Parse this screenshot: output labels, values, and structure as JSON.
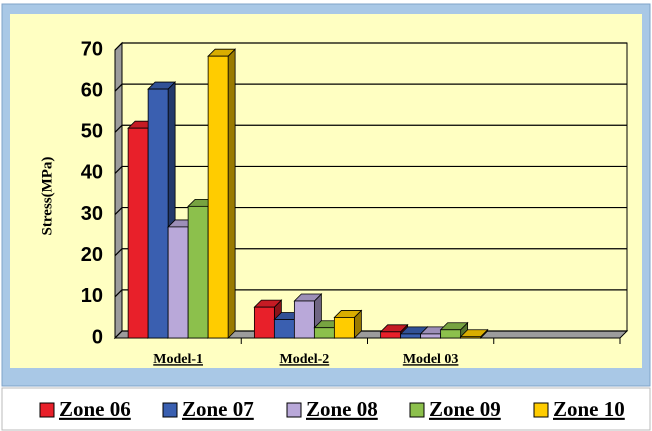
{
  "chart_data": {
    "type": "bar3d",
    "y_label": "Stress(MPa)",
    "categories": [
      "Model-1",
      "Model-2",
      "Model 03",
      null
    ],
    "series": [
      {
        "name": "Zone 06",
        "color": "#e8202a",
        "values": [
          51,
          7.5,
          1.5,
          null
        ]
      },
      {
        "name": "Zone 07",
        "color": "#3a5fb0",
        "values": [
          60.5,
          4.5,
          1,
          null
        ]
      },
      {
        "name": "Zone 08",
        "color": "#b9a8d9",
        "values": [
          27,
          9,
          1,
          null
        ]
      },
      {
        "name": "Zone 09",
        "color": "#8cc04c",
        "values": [
          32,
          2.5,
          2,
          null
        ]
      },
      {
        "name": "Zone 10",
        "color": "#ffcc00",
        "values": [
          68.5,
          5,
          0.3,
          null
        ]
      }
    ],
    "ylim": [
      0,
      70
    ],
    "yticks": [
      0,
      10,
      20,
      30,
      40,
      50,
      60,
      70
    ],
    "grid": true,
    "legend": "bottom"
  }
}
